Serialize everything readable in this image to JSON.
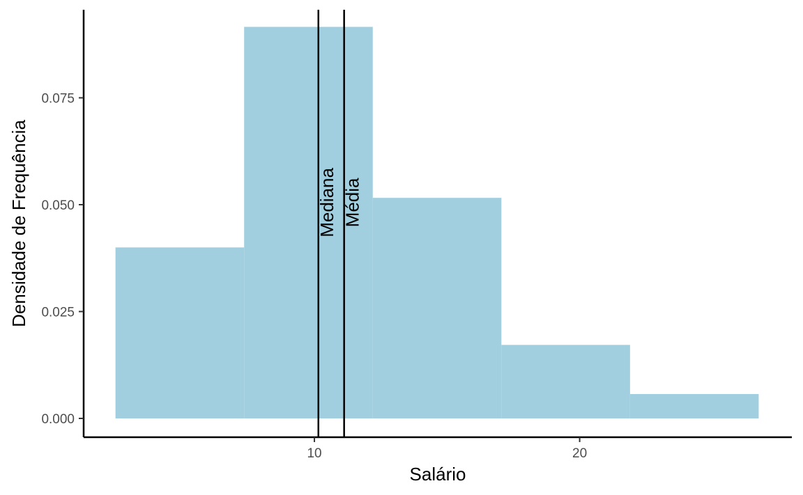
{
  "chart_data": {
    "type": "histogram",
    "xlabel": "Salário",
    "ylabel": "Densidade de Frequência",
    "xlim": [
      1.3,
      28.0
    ],
    "ylim": [
      -0.0044,
      0.0956
    ],
    "x_ticks": [
      10,
      20
    ],
    "x_tick_labels": [
      "10",
      "20"
    ],
    "y_ticks": [
      0.0,
      0.025,
      0.05,
      0.075
    ],
    "y_tick_labels": [
      "0.000",
      "0.025",
      "0.050",
      "0.075"
    ],
    "bins": [
      {
        "x0": 2.5,
        "x1": 7.35,
        "density": 0.04
      },
      {
        "x0": 7.35,
        "x1": 12.2,
        "density": 0.0916
      },
      {
        "x0": 12.2,
        "x1": 17.05,
        "density": 0.0516
      },
      {
        "x0": 17.05,
        "x1": 21.9,
        "density": 0.0172
      },
      {
        "x0": 21.9,
        "x1": 26.75,
        "density": 0.0057
      }
    ],
    "vlines": [
      {
        "label": "Mediana",
        "x": 10.15
      },
      {
        "label": "Média",
        "x": 11.12
      }
    ],
    "bar_color": "#a1cfe0",
    "grid": false,
    "legend": "none"
  }
}
